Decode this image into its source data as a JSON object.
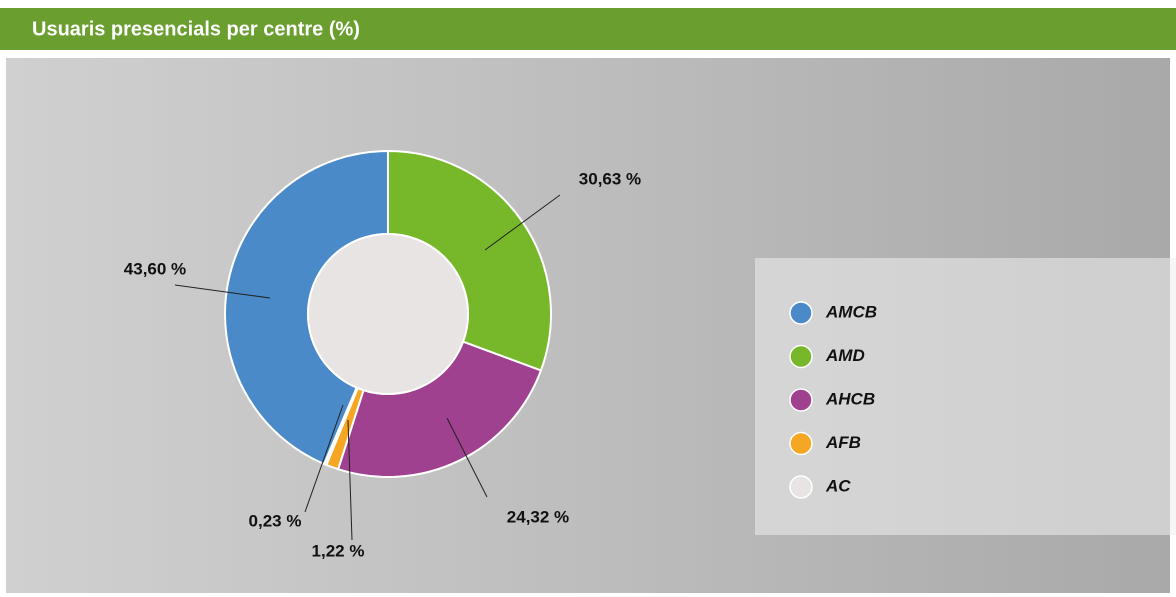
{
  "chart_data": {
    "type": "donut",
    "title": "Usuaris presencials per centre (%)",
    "categories": [
      "AMCB",
      "AMD",
      "AHCB",
      "AFB",
      "AC"
    ],
    "values": [
      43.6,
      30.63,
      24.32,
      1.22,
      0.23
    ],
    "value_labels": [
      "43,60 %",
      "30,63 %",
      "24,32 %",
      "1,22 %",
      "0,23 %"
    ],
    "colors": [
      "#4a8ac9",
      "#76b82a",
      "#a0418f",
      "#f5a623",
      "#e8e4e4"
    ]
  }
}
